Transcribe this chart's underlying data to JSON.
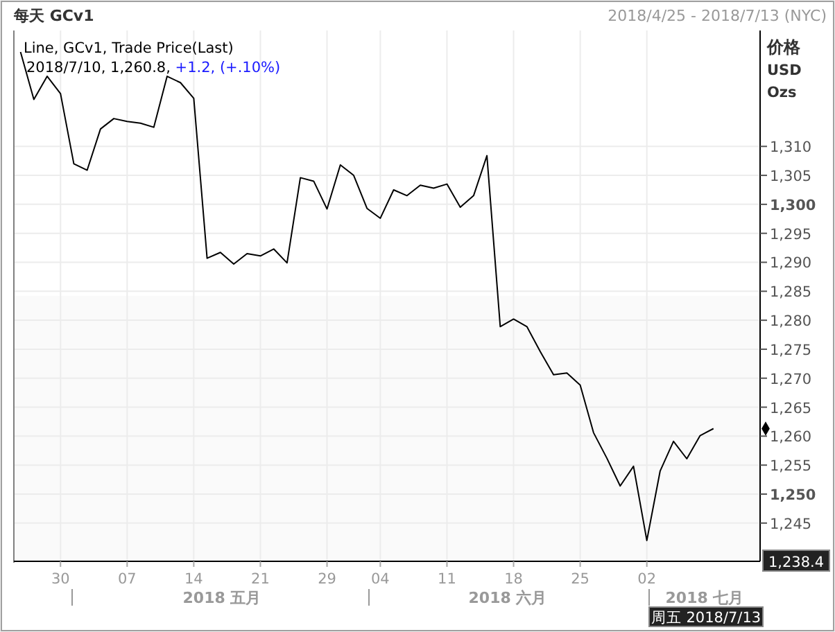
{
  "chart_data": {
    "type": "line",
    "title": "每天 GCv1",
    "subtitle": "2018/4/25 - 2018/7/13 (NYC)",
    "ylabel": "价格 USD Ozs",
    "annotations": [
      "Line, GCv1, Trade Price(Last)",
      "2018/7/10, 1,260.8,",
      "+1.2, (+.10%)",
      "周五 2018/7/13",
      "2018 五月",
      "2018 六月",
      "2018 七月"
    ],
    "categories": [
      null,
      null,
      null,
      "30",
      null,
      null,
      null,
      null,
      "07",
      null,
      null,
      null,
      null,
      "14",
      null,
      null,
      null,
      null,
      "21",
      null,
      null,
      null,
      null,
      "29",
      null,
      null,
      null,
      "04",
      null,
      null,
      null,
      null,
      "11",
      null,
      null,
      null,
      null,
      "18",
      null,
      null,
      null,
      null,
      "25",
      null,
      null,
      null,
      null,
      "02",
      null,
      null,
      null,
      null,
      null,
      null,
      null,
      null
    ],
    "series": [
      {
        "color": "#000000",
        "values": [
          1326.3,
          1318.1,
          1322.1,
          1319.1,
          1307.0,
          1305.9,
          1313.0,
          1314.8,
          1314.3,
          1314.0,
          1313.3,
          1322.1,
          1321.0,
          1318.3,
          1290.7,
          1291.7,
          1289.7,
          1291.5,
          1291.1,
          1292.3,
          1289.9,
          1304.6,
          1304.0,
          1299.2,
          1306.8,
          1305.0,
          1299.3,
          1297.6,
          1302.5,
          1301.5,
          1303.3,
          1302.8,
          1303.5,
          1299.5,
          1301.5,
          1308.4,
          1278.9,
          1280.2,
          1278.9,
          1274.6,
          1270.6,
          1270.9,
          1268.8,
          1260.6,
          1256.2,
          1251.4,
          1254.8,
          1242.0,
          1254.0,
          1259.1,
          1256.1,
          1260.1,
          1261.3,
          null,
          null,
          null
        ]
      }
    ],
    "ylim": [
      1238.4,
      1330
    ],
    "yticks": [
      {
        "value": 1238.4,
        "label": "1,238.4"
      },
      {
        "value": 1245,
        "label": "1,245"
      },
      {
        "value": 1250,
        "label": "1,250"
      },
      {
        "value": 1255,
        "label": "1,255"
      },
      {
        "value": 1260,
        "label": "1,260"
      },
      {
        "value": 1265,
        "label": "1,265"
      },
      {
        "value": 1270,
        "label": "1,270"
      },
      {
        "value": 1275,
        "label": "1,275"
      },
      {
        "value": 1280,
        "label": "1,280"
      },
      {
        "value": 1285,
        "label": "1,285"
      },
      {
        "value": 1290,
        "label": "1,290"
      },
      {
        "value": 1295,
        "label": "1,295"
      },
      {
        "value": 1300,
        "label": "1,300"
      },
      {
        "value": 1305,
        "label": "1,305"
      },
      {
        "value": 1310,
        "label": "1,310"
      }
    ],
    "grid": true,
    "marker": "none",
    "line_style": "solid"
  }
}
